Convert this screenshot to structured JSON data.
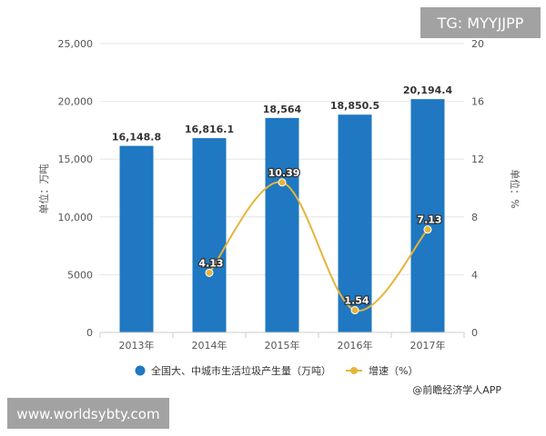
{
  "watermarks": {
    "top_right": "TG: MYYJJPP",
    "bottom_left": "www.worldsybty.com"
  },
  "source": "@前瞻经济学人APP",
  "colors": {
    "bar": "#1f78c1",
    "line": "#e5b53a",
    "grid": "#e6e6e6",
    "axis": "#cccccc",
    "watermark_bg": "#9a9a9a"
  },
  "chart_data": {
    "type": "bar",
    "categories": [
      "2013年",
      "2014年",
      "2015年",
      "2016年",
      "2017年"
    ],
    "series": [
      {
        "name": "全国大、中城市生活垃圾产生量（万吨）",
        "type": "bar",
        "axis": "left",
        "values": [
          16148.8,
          16816.1,
          18564,
          18850.5,
          20194.4
        ],
        "labels": [
          "16,148.8",
          "16,816.1",
          "18,564",
          "18,850.5",
          "20,194.4"
        ]
      },
      {
        "name": "增速（%）",
        "type": "line",
        "axis": "right",
        "values": [
          null,
          4.13,
          10.39,
          1.54,
          7.13
        ],
        "labels": [
          "",
          "4.13",
          "10.39",
          "1.54",
          "7.13"
        ]
      }
    ],
    "ylabel_left": "单位：万吨",
    "ylabel_right": "单位：%",
    "ylim_left": [
      0,
      25000
    ],
    "ylim_right": [
      0,
      20
    ],
    "yticks_left": [
      "0",
      "5000",
      "10,000",
      "15,000",
      "20,000",
      "25,000"
    ],
    "yticks_right": [
      "0",
      "4",
      "8",
      "12",
      "16",
      "20"
    ],
    "grid": true,
    "legend_position": "bottom"
  }
}
